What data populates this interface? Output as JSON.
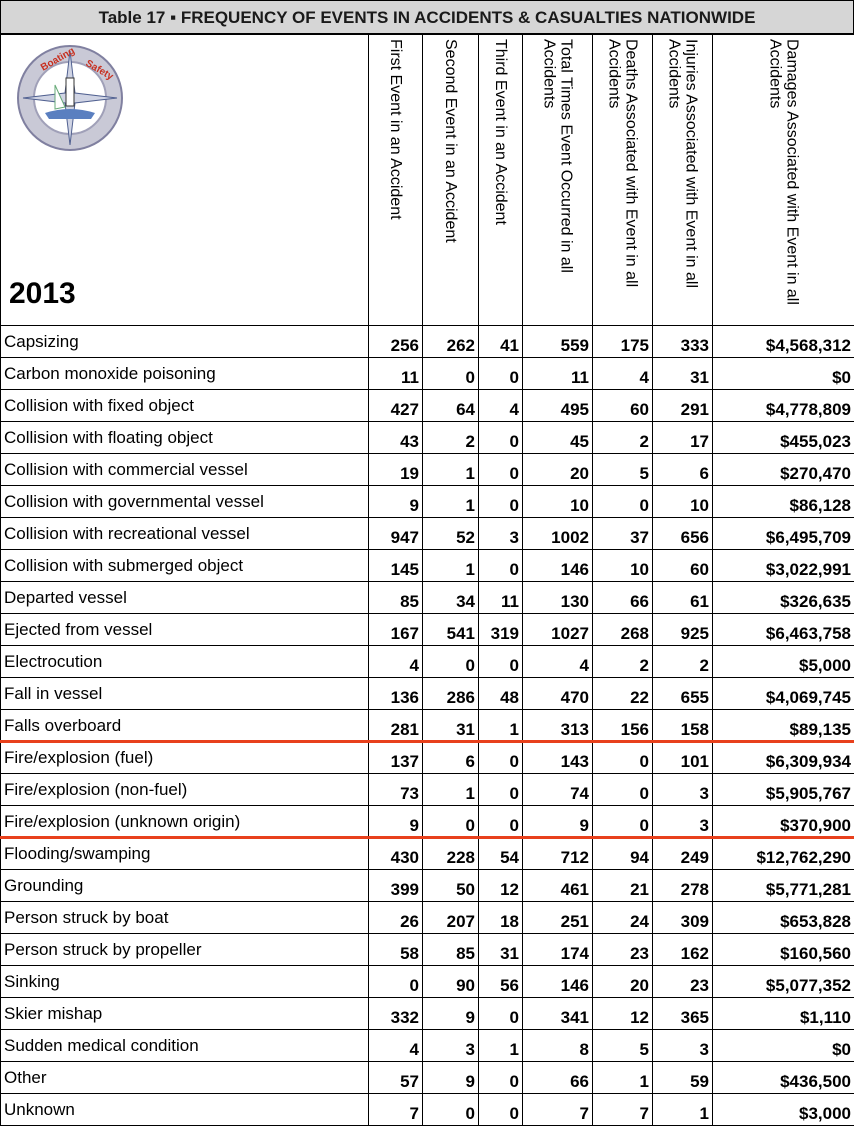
{
  "header": {
    "title": "Table 17 ▪ FREQUENCY OF EVENTS IN ACCIDENTS & CASUALTIES NATIONWIDE",
    "year": "2013",
    "columns": [
      "First Event in an Accident",
      "Second Event in an Accident",
      "Third Event in an Accident",
      "Total Times Event Occurred in all Accidents",
      "Deaths Associated with Event in all Accidents",
      "Injuries Associated with Event in all Accidents",
      "Damages Associated with Event in all Accidents"
    ]
  },
  "table": {
    "rows": [
      [
        "Capsizing",
        256,
        262,
        41,
        559,
        175,
        333,
        "$4,568,312"
      ],
      [
        "Carbon monoxide poisoning",
        11,
        0,
        0,
        11,
        4,
        31,
        "$0"
      ],
      [
        "Collision with fixed object",
        427,
        64,
        4,
        495,
        60,
        291,
        "$4,778,809"
      ],
      [
        "Collision with floating object",
        43,
        2,
        0,
        45,
        2,
        17,
        "$455,023"
      ],
      [
        "Collision with commercial vessel",
        19,
        1,
        0,
        20,
        5,
        6,
        "$270,470"
      ],
      [
        "Collision with governmental vessel",
        9,
        1,
        0,
        10,
        0,
        10,
        "$86,128"
      ],
      [
        "Collision with recreational vessel",
        947,
        52,
        3,
        1002,
        37,
        656,
        "$6,495,709"
      ],
      [
        "Collision with submerged object",
        145,
        1,
        0,
        146,
        10,
        60,
        "$3,022,991"
      ],
      [
        "Departed vessel",
        85,
        34,
        11,
        130,
        66,
        61,
        "$326,635"
      ],
      [
        "Ejected from vessel",
        167,
        541,
        319,
        1027,
        268,
        925,
        "$6,463,758"
      ],
      [
        "Electrocution",
        4,
        0,
        0,
        4,
        2,
        2,
        "$5,000"
      ],
      [
        "Fall in vessel",
        136,
        286,
        48,
        470,
        22,
        655,
        "$4,069,745"
      ],
      [
        "Falls overboard",
        281,
        31,
        1,
        313,
        156,
        158,
        "$89,135"
      ],
      [
        "Fire/explosion (fuel)",
        137,
        6,
        0,
        143,
        0,
        101,
        "$6,309,934"
      ],
      [
        "Fire/explosion (non-fuel)",
        73,
        1,
        0,
        74,
        0,
        3,
        "$5,905,767"
      ],
      [
        "Fire/explosion (unknown origin)",
        9,
        0,
        0,
        9,
        0,
        3,
        "$370,900"
      ],
      [
        "Flooding/swamping",
        430,
        228,
        54,
        712,
        94,
        249,
        "$12,762,290"
      ],
      [
        "Grounding",
        399,
        50,
        12,
        461,
        21,
        278,
        "$5,771,281"
      ],
      [
        "Person struck by boat",
        26,
        207,
        18,
        251,
        24,
        309,
        "$653,828"
      ],
      [
        "Person struck by propeller",
        58,
        85,
        31,
        174,
        23,
        162,
        "$160,560"
      ],
      [
        "Sinking",
        0,
        90,
        56,
        146,
        20,
        23,
        "$5,077,352"
      ],
      [
        "Skier mishap",
        332,
        9,
        0,
        341,
        12,
        365,
        "$1,110"
      ],
      [
        "Sudden medical condition",
        4,
        3,
        1,
        8,
        5,
        3,
        "$0"
      ],
      [
        "Other",
        57,
        9,
        0,
        66,
        1,
        59,
        "$436,500"
      ],
      [
        "Unknown",
        7,
        0,
        0,
        7,
        7,
        1,
        "$3,000"
      ]
    ]
  }
}
